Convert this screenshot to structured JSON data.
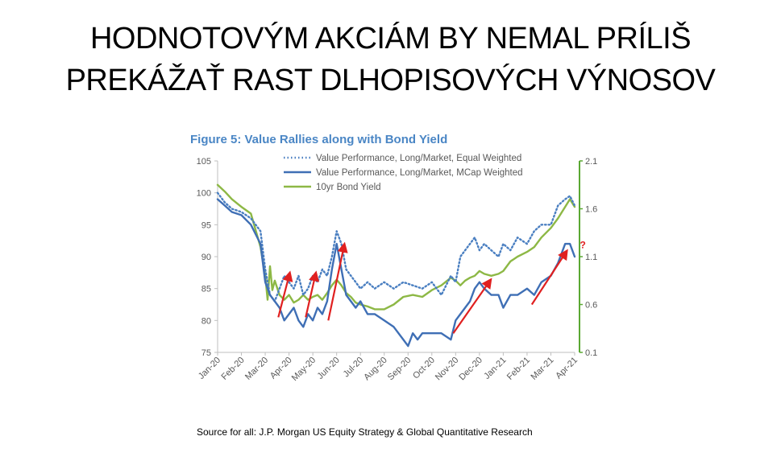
{
  "slide": {
    "title_line1": "HODNOTOVÝM AKCIÁM BY NEMAL PRÍLIŠ",
    "title_line2": "PREKÁŽAŤ RAST DLHOPISOVÝCH VÝNOSOV",
    "source": "Source for all: J.P. Morgan US Equity Strategy & Global Quantitative Research"
  },
  "colors": {
    "equal_weighted": "#4a7fc1",
    "mcap_weighted": "#3f6fb5",
    "bond_yield": "#8db845",
    "right_axis": "#5aa832",
    "arrow": "#e02020",
    "title": "#4a86c5"
  },
  "chart_data": {
    "type": "line",
    "title": "Figure 5: Value Rallies along with Bond Yield",
    "x_tick_labels": [
      "Jan-20",
      "Feb-20",
      "Mar-20",
      "Apr-20",
      "May-20",
      "Jun-20",
      "Jul-20",
      "Aug-20",
      "Sep-20",
      "Oct-20",
      "Nov-20",
      "Dec-20",
      "Jan-21",
      "Feb-21",
      "Mar-21",
      "Apr-21"
    ],
    "ylim_left": [
      75,
      105
    ],
    "yticks_left": [
      "75",
      "80",
      "85",
      "90",
      "95",
      "100",
      "105"
    ],
    "ylim_right": [
      0.1,
      2.1
    ],
    "yticks_right": [
      "0.1",
      "0.6",
      "1.1",
      "1.6",
      "2.1"
    ],
    "legend_position": "top-center",
    "annotation": "?",
    "series": [
      {
        "name": "Value Performance, Long/Market, Equal Weighted",
        "axis": "left",
        "style": "dotted",
        "x": [
          0,
          0.3,
          0.6,
          1,
          1.4,
          1.8,
          2,
          2.2,
          2.4,
          2.6,
          2.8,
          3,
          3.2,
          3.4,
          3.6,
          3.8,
          4,
          4.2,
          4.4,
          4.6,
          4.8,
          5,
          5.2,
          5.4,
          5.6,
          5.8,
          6,
          6.3,
          6.6,
          7,
          7.4,
          7.8,
          8.2,
          8.6,
          9,
          9.4,
          9.8,
          10,
          10.2,
          10.4,
          10.6,
          10.8,
          11,
          11.2,
          11.5,
          11.8,
          12,
          12.3,
          12.6,
          13,
          13.3,
          13.6,
          14,
          14.3,
          14.6,
          14.8,
          15
        ],
        "y": [
          100,
          98.5,
          97.5,
          97,
          96,
          94,
          88,
          84,
          83,
          85,
          87,
          86,
          85,
          87,
          84,
          85,
          87,
          86,
          88,
          87,
          90,
          94,
          92,
          88,
          87,
          86,
          85,
          86,
          85,
          86,
          85,
          86,
          85.5,
          85,
          86,
          84,
          87,
          86,
          90,
          91,
          92,
          93,
          91,
          92,
          91,
          90,
          92,
          91,
          93,
          92,
          94,
          95,
          95,
          98,
          99,
          99.5,
          98
        ]
      },
      {
        "name": "Value Performance, Long/Market, MCap Weighted",
        "axis": "left",
        "style": "solid",
        "x": [
          0,
          0.3,
          0.6,
          1,
          1.4,
          1.8,
          2,
          2.2,
          2.4,
          2.6,
          2.8,
          3,
          3.2,
          3.4,
          3.6,
          3.8,
          4,
          4.2,
          4.4,
          4.6,
          4.8,
          5,
          5.2,
          5.4,
          5.6,
          5.8,
          6,
          6.3,
          6.6,
          7,
          7.4,
          7.8,
          8,
          8.2,
          8.4,
          8.6,
          9,
          9.4,
          9.8,
          10,
          10.2,
          10.4,
          10.6,
          10.8,
          11,
          11.2,
          11.5,
          11.8,
          12,
          12.3,
          12.6,
          13,
          13.3,
          13.6,
          14,
          14.3,
          14.6,
          14.8,
          15
        ],
        "y": [
          99,
          98,
          97,
          96.5,
          95,
          92,
          86,
          84,
          83,
          82,
          80,
          81,
          82,
          80,
          79,
          81,
          80,
          82,
          81,
          83,
          88,
          92,
          88,
          84,
          83,
          82,
          83,
          81,
          81,
          80,
          79,
          77,
          76,
          78,
          77,
          78,
          78,
          78,
          77,
          80,
          81,
          82,
          83,
          85,
          86,
          85,
          84,
          84,
          82,
          84,
          84,
          85,
          84,
          86,
          87,
          89,
          92,
          92,
          90
        ]
      },
      {
        "name": "10yr Bond Yield",
        "axis": "right",
        "style": "solid",
        "x": [
          0,
          0.3,
          0.6,
          1,
          1.4,
          1.8,
          2,
          2.1,
          2.2,
          2.3,
          2.4,
          2.6,
          2.8,
          3,
          3.2,
          3.4,
          3.6,
          3.8,
          4,
          4.2,
          4.4,
          4.6,
          4.8,
          5,
          5.2,
          5.4,
          5.6,
          5.8,
          6,
          6.3,
          6.6,
          7,
          7.4,
          7.8,
          8.2,
          8.6,
          9,
          9.4,
          9.8,
          10,
          10.2,
          10.4,
          10.6,
          10.8,
          11,
          11.2,
          11.5,
          11.8,
          12,
          12.3,
          12.6,
          13,
          13.3,
          13.6,
          14,
          14.3,
          14.6,
          14.8,
          15
        ],
        "y": [
          1.85,
          1.78,
          1.7,
          1.62,
          1.55,
          1.2,
          0.9,
          0.65,
          1.0,
          0.75,
          0.85,
          0.7,
          0.65,
          0.7,
          0.62,
          0.65,
          0.7,
          0.65,
          0.68,
          0.7,
          0.65,
          0.72,
          0.8,
          0.86,
          0.8,
          0.72,
          0.68,
          0.62,
          0.6,
          0.58,
          0.55,
          0.55,
          0.6,
          0.68,
          0.7,
          0.68,
          0.75,
          0.8,
          0.88,
          0.85,
          0.8,
          0.85,
          0.88,
          0.9,
          0.95,
          0.92,
          0.9,
          0.92,
          0.95,
          1.05,
          1.1,
          1.15,
          1.2,
          1.3,
          1.4,
          1.5,
          1.62,
          1.7,
          1.62
        ]
      }
    ]
  }
}
